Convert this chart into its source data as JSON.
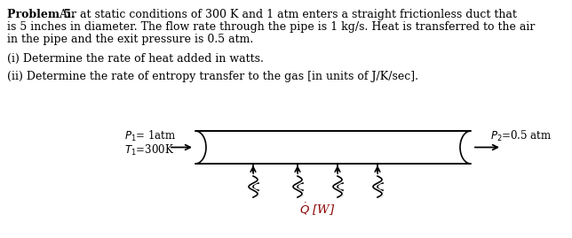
{
  "title_bold": "Problem 5.",
  "title_rest": " Air at static conditions of 300 K and 1 atm enters a straight frictionless duct that",
  "line2": "is 5 inches in diameter. The flow rate through the pipe is 1 kg/s. Heat is transferred to the air",
  "line3": "in the pipe and the exit pressure is 0.5 atm.",
  "line_i": "(i) Determine the rate of heat added in watts.",
  "line_ii": "(ii) Determine the rate of entropy transfer to the gas [in units of J/K/sec].",
  "label_P1": "$P_1$= 1atm",
  "label_T1": "$T_1$=300K",
  "label_P2": "$P_2$=0.5 atm",
  "label_Qdot": "$\\dot{Q}$ [W]",
  "bg_color": "#ffffff",
  "text_color": "#000000"
}
